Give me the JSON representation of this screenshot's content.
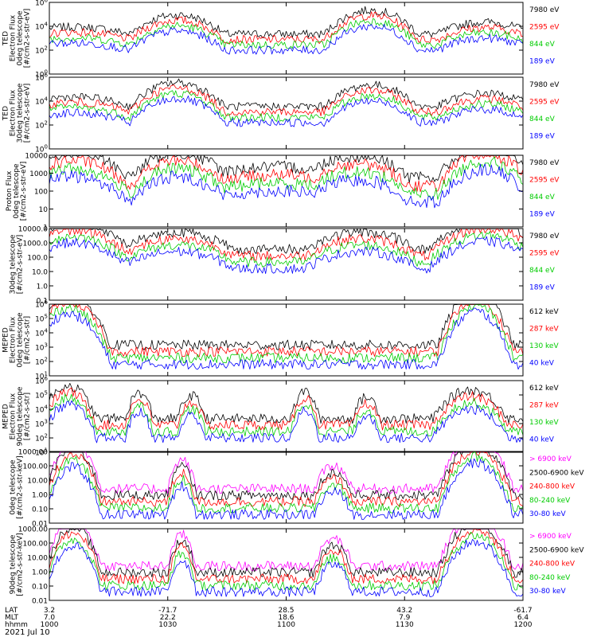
{
  "chart_data": [
    {
      "type": "line",
      "scale": "log",
      "grid": false,
      "ylabel": [
        "TED",
        "Electron Flux",
        "0deg telescope",
        "[#/cm2-s-str-eV]"
      ],
      "yticks": [
        "10^6",
        "10^4",
        "10^2",
        "10^0"
      ],
      "ylim_log10": [
        0,
        6
      ],
      "series": [
        {
          "name": "7980 eV",
          "color": "#000000"
        },
        {
          "name": "2595 eV",
          "color": "#ff0000"
        },
        {
          "name": "844 eV",
          "color": "#00cc00"
        },
        {
          "name": "189 eV",
          "color": "#0000ff"
        }
      ]
    },
    {
      "type": "line",
      "scale": "log",
      "grid": false,
      "ylabel": [
        "TED",
        "Electron Flux",
        "30deg telescope",
        "[#/cm2-s-str-eV]"
      ],
      "yticks": [
        "10^6",
        "10^4",
        "10^2",
        "10^0"
      ],
      "ylim_log10": [
        0,
        6
      ],
      "series": [
        {
          "name": "7980 eV",
          "color": "#000000"
        },
        {
          "name": "2595 eV",
          "color": "#ff0000"
        },
        {
          "name": "844 eV",
          "color": "#00cc00"
        },
        {
          "name": "189 eV",
          "color": "#0000ff"
        }
      ]
    },
    {
      "type": "line",
      "scale": "log",
      "grid": false,
      "ylabel": [
        "Proton Flux",
        "0deg telescope",
        "[#/cm2-s-str-eV]"
      ],
      "yticks": [
        "10000",
        "1000",
        "100",
        "10",
        "1"
      ],
      "ylim_log10": [
        0,
        4
      ],
      "series": [
        {
          "name": "7980 eV",
          "color": "#000000"
        },
        {
          "name": "2595 eV",
          "color": "#ff0000"
        },
        {
          "name": "844 eV",
          "color": "#00cc00"
        },
        {
          "name": "189 eV",
          "color": "#0000ff"
        }
      ]
    },
    {
      "type": "line",
      "scale": "log",
      "grid": false,
      "ylabel": [
        "30deg telescope",
        "[#/cm2-s-str-eV]"
      ],
      "yticks": [
        "10000.0",
        "1000.0",
        "100.0",
        "10.0",
        "1.0",
        "0.1"
      ],
      "ylim_log10": [
        -1,
        4
      ],
      "series": [
        {
          "name": "7980 eV",
          "color": "#000000"
        },
        {
          "name": "2595 eV",
          "color": "#ff0000"
        },
        {
          "name": "844 eV",
          "color": "#00cc00"
        },
        {
          "name": "189 eV",
          "color": "#0000ff"
        }
      ]
    },
    {
      "type": "line",
      "scale": "log",
      "grid": false,
      "ylabel": [
        "MEPED",
        "Electron Flux",
        "0deg telescope",
        "[#/cm2-s-str]"
      ],
      "yticks": [
        "10^6",
        "10^5",
        "10^4",
        "10^3",
        "10^2",
        "10^1"
      ],
      "ylim_log10": [
        1,
        6
      ],
      "series": [
        {
          "name": "612 keV",
          "color": "#000000"
        },
        {
          "name": "287 keV",
          "color": "#ff0000"
        },
        {
          "name": "130 keV",
          "color": "#00cc00"
        },
        {
          "name": "40 keV",
          "color": "#0000ff"
        }
      ]
    },
    {
      "type": "line",
      "scale": "log",
      "grid": false,
      "ylabel": [
        "MEPED",
        "Electron Flux",
        "90deg telescope",
        "[#/cm2-s-str]"
      ],
      "yticks": [
        "10^6",
        "10^5",
        "10^4",
        "10^3",
        "10^2",
        "10^1"
      ],
      "ylim_log10": [
        1,
        6
      ],
      "series": [
        {
          "name": "612 keV",
          "color": "#000000"
        },
        {
          "name": "287 keV",
          "color": "#ff0000"
        },
        {
          "name": "130 keV",
          "color": "#00cc00"
        },
        {
          "name": "40 keV",
          "color": "#0000ff"
        }
      ]
    },
    {
      "type": "line",
      "scale": "log",
      "grid": false,
      "ylabel": [
        "0deg telescope",
        "[#/cm2-s-str-keV]"
      ],
      "yticks": [
        "1000.00",
        "100.00",
        "10.00",
        "1.00",
        "0.10",
        "0.01"
      ],
      "ylim_log10": [
        -2,
        3
      ],
      "series": [
        {
          "name": "> 6900 keV",
          "color": "#ff00ff"
        },
        {
          "name": "2500-6900 keV",
          "color": "#000000"
        },
        {
          "name": "240-800 keV",
          "color": "#ff0000"
        },
        {
          "name": "80-240 keV",
          "color": "#00cc00"
        },
        {
          "name": "30-80 keV",
          "color": "#0000ff"
        }
      ]
    },
    {
      "type": "line",
      "scale": "log",
      "grid": false,
      "ylabel": [
        "90deg telescope",
        "[#/cm2-s-str-keV]"
      ],
      "yticks": [
        "1000.00",
        "100.00",
        "10.00",
        "1.00",
        "0.10",
        "0.01"
      ],
      "ylim_log10": [
        -2,
        3
      ],
      "series": [
        {
          "name": "> 6900 keV",
          "color": "#ff00ff"
        },
        {
          "name": "2500-6900 keV",
          "color": "#000000"
        },
        {
          "name": "240-800 keV",
          "color": "#ff0000"
        },
        {
          "name": "80-240 keV",
          "color": "#00cc00"
        },
        {
          "name": "30-80 keV",
          "color": "#0000ff"
        }
      ]
    }
  ],
  "x_axis": {
    "row_labels": [
      "LAT",
      "MLT",
      "hhmm"
    ],
    "date": "2021 Jul 10",
    "xlim_hhmm": [
      "1000",
      "1200"
    ],
    "ticks": [
      {
        "hhmm": "1000",
        "lat": "3.2",
        "mlt": "7.0"
      },
      {
        "hhmm": "1030",
        "lat": "-71.7",
        "mlt": "22.2"
      },
      {
        "hhmm": "1100",
        "lat": "28.5",
        "mlt": "18.6"
      },
      {
        "hhmm": "1130",
        "lat": "43.2",
        "mlt": "7.9"
      },
      {
        "hhmm": "1200",
        "lat": "-61.7",
        "mlt": "6.4"
      }
    ]
  }
}
